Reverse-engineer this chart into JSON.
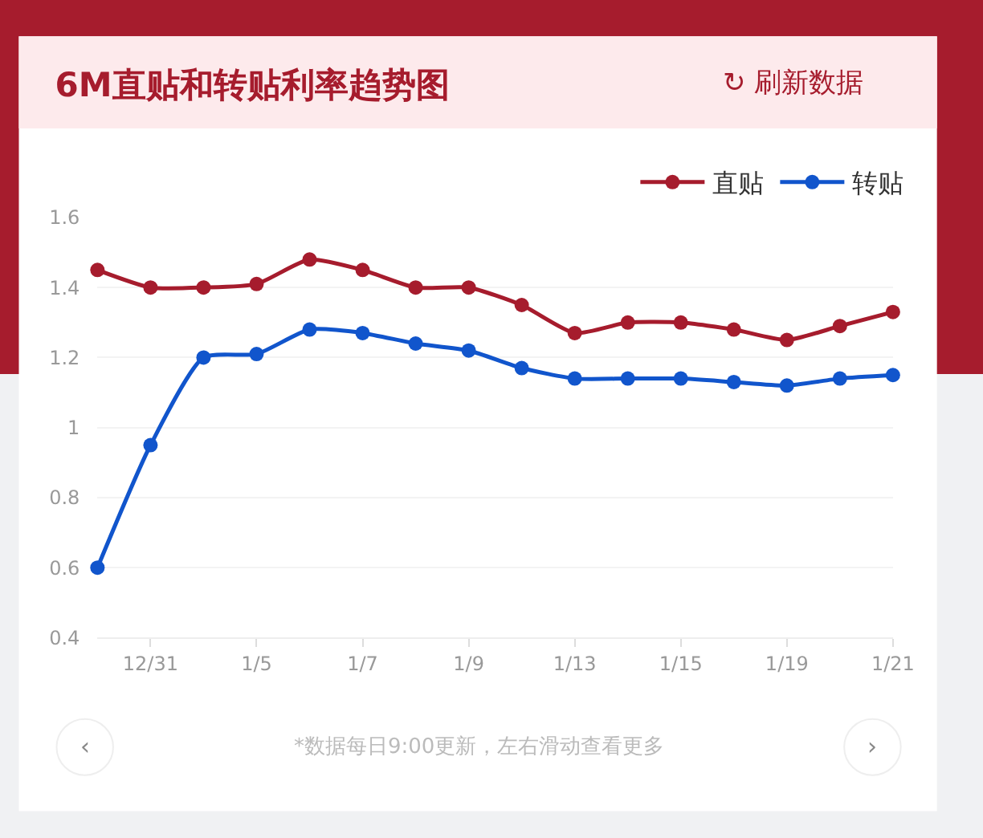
{
  "chart_data": {
    "type": "line",
    "title": "6M直贴和转贴利率趋势图",
    "categories": [
      null,
      "12/31",
      null,
      "1/5",
      null,
      "1/7",
      null,
      "1/9",
      null,
      "1/13",
      null,
      "1/15",
      null,
      "1/19",
      null,
      "1/21"
    ],
    "series": [
      {
        "name": "直贴",
        "color": "#a61c2d",
        "values": [
          1.45,
          1.4,
          1.4,
          1.41,
          1.48,
          1.45,
          1.4,
          1.4,
          1.35,
          1.27,
          1.3,
          1.3,
          1.28,
          1.25,
          1.29,
          1.33
        ]
      },
      {
        "name": "转贴",
        "color": "#1155cc",
        "values": [
          0.6,
          0.95,
          1.2,
          1.21,
          1.28,
          1.27,
          1.24,
          1.22,
          1.17,
          1.14,
          1.14,
          1.14,
          1.13,
          1.12,
          1.14,
          1.15
        ]
      }
    ],
    "ylim": [
      0.4,
      1.6
    ],
    "yticks": [
      0.4,
      0.6,
      0.8,
      1,
      1.2,
      1.4,
      1.6
    ],
    "grid": "y",
    "legend": "top right",
    "marker": "circle",
    "line_style": "solid",
    "annotations": [
      "↻ 刷新数据",
      "*数据每日9:00更新，左右滑动查看更多",
      "‹",
      "›"
    ]
  }
}
